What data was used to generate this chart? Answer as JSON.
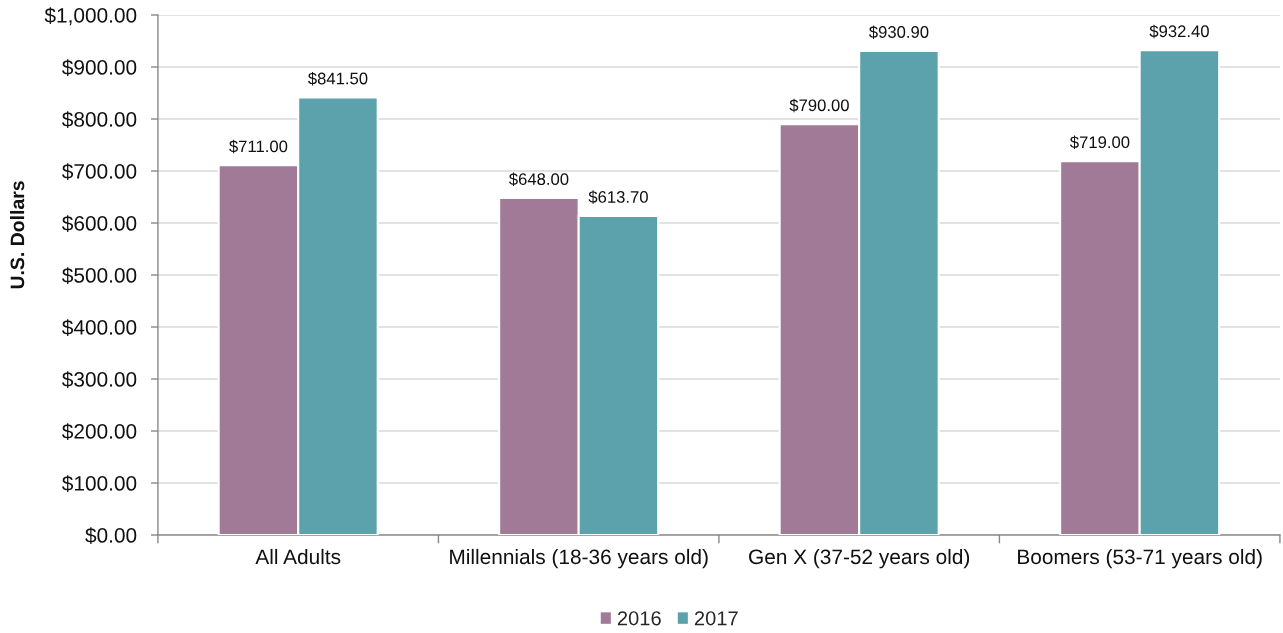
{
  "chart_data": {
    "type": "bar",
    "categories": [
      "All Adults",
      "Millennials (18-36 years old)",
      "Gen X (37-52 years old)",
      "Boomers (53-71 years old)"
    ],
    "series": [
      {
        "name": "2016",
        "color": "#a07a96",
        "values": [
          711.0,
          648.0,
          790.0,
          719.0
        ],
        "value_labels": [
          "$711.00",
          "$648.00",
          "$790.00",
          "$719.00"
        ]
      },
      {
        "name": "2017",
        "color": "#5ba2ac",
        "values": [
          841.5,
          613.7,
          930.9,
          932.4
        ],
        "value_labels": [
          "$841.50",
          "$613.70",
          "$930.90",
          "$932.40"
        ]
      }
    ],
    "ylabel": "U.S. Dollars",
    "ylim": [
      0,
      1000
    ],
    "yticks": [
      {
        "value": 0,
        "label": "$0.00"
      },
      {
        "value": 100,
        "label": "$100.00"
      },
      {
        "value": 200,
        "label": "$200.00"
      },
      {
        "value": 300,
        "label": "$300.00"
      },
      {
        "value": 400,
        "label": "$400.00"
      },
      {
        "value": 500,
        "label": "$500.00"
      },
      {
        "value": 600,
        "label": "$600.00"
      },
      {
        "value": 700,
        "label": "$700.00"
      },
      {
        "value": 800,
        "label": "$800.00"
      },
      {
        "value": 900,
        "label": "$900.00"
      },
      {
        "value": 1000,
        "label": "$1,000.00"
      }
    ],
    "grid": "y",
    "legend": "bottom"
  }
}
